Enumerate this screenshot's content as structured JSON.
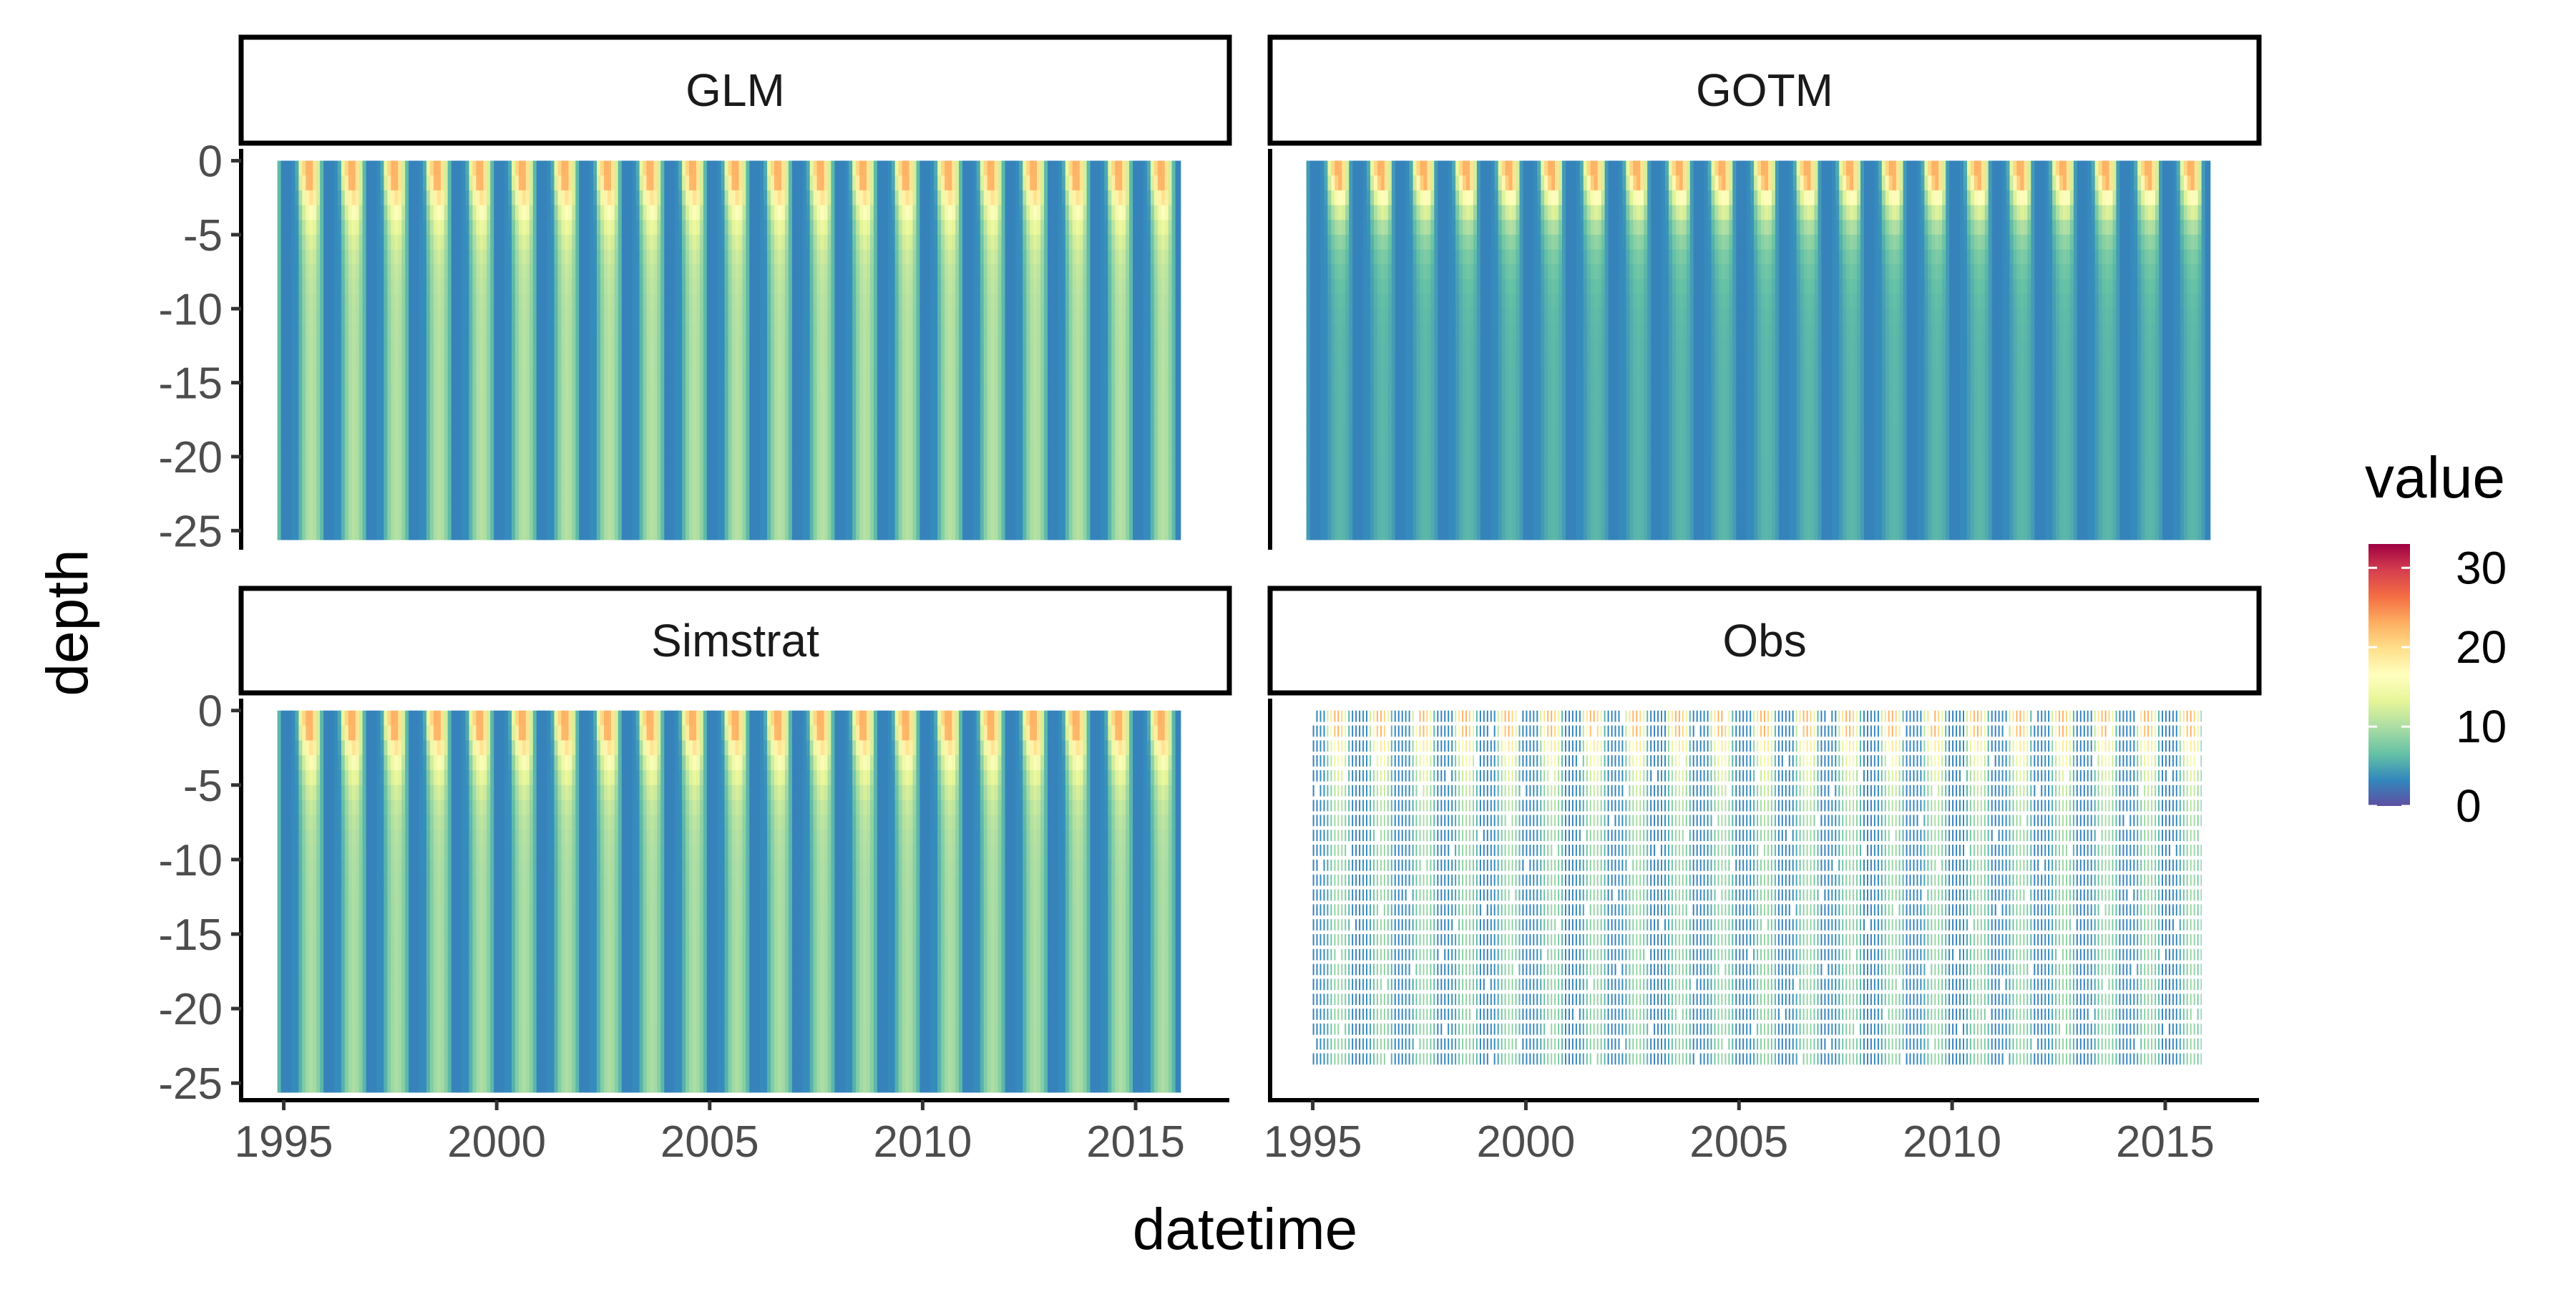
{
  "chart_data": {
    "type": "heatmap",
    "xlabel": "datetime",
    "ylabel": "depth",
    "legend_title": "value",
    "legend_position": "right",
    "legend_ticks": [
      30,
      20,
      10,
      0
    ],
    "value_range": [
      0,
      33
    ],
    "colormap": [
      "#5E4FA2",
      "#3288BD",
      "#66C2A5",
      "#ABDDA4",
      "#E6F598",
      "#FFFFBF",
      "#FEE08B",
      "#FDAE61",
      "#F46D43",
      "#D53E4F",
      "#9E0142"
    ],
    "x_ticks": [
      "1995",
      "2000",
      "2005",
      "2010",
      "2015"
    ],
    "x_tick_values": [
      1995,
      2000,
      2005,
      2010,
      2015
    ],
    "xlim": [
      1994.0,
      2017.2
    ],
    "y_ticks": [
      "0",
      "-5",
      "-10",
      "-15",
      "-20",
      "-25"
    ],
    "y_tick_values": [
      0,
      -5,
      -10,
      -15,
      -20,
      -25
    ],
    "ylim": [
      -26,
      0.8
    ],
    "grid": false,
    "panels": [
      {
        "title": "GLM",
        "x_start": 1994.85,
        "x_end": 2016.05,
        "depth_bottom": -25.6,
        "mixed_depth": 8,
        "hypolimnion_value": 10.5
      },
      {
        "title": "GOTM",
        "x_start": 1994.85,
        "x_end": 2016.05,
        "depth_bottom": -25.6,
        "mixed_depth": 6,
        "hypolimnion_value": 6
      },
      {
        "title": "Simstrat",
        "x_start": 1994.85,
        "x_end": 2016.05,
        "depth_bottom": -25.6,
        "mixed_depth": 8,
        "hypolimnion_value": 10
      },
      {
        "title": "Obs",
        "x_start": 1995.0,
        "x_end": 2015.9,
        "depth_bottom": -25.0,
        "mixed_depth": 8,
        "hypolimnion_value": 9
      }
    ]
  }
}
